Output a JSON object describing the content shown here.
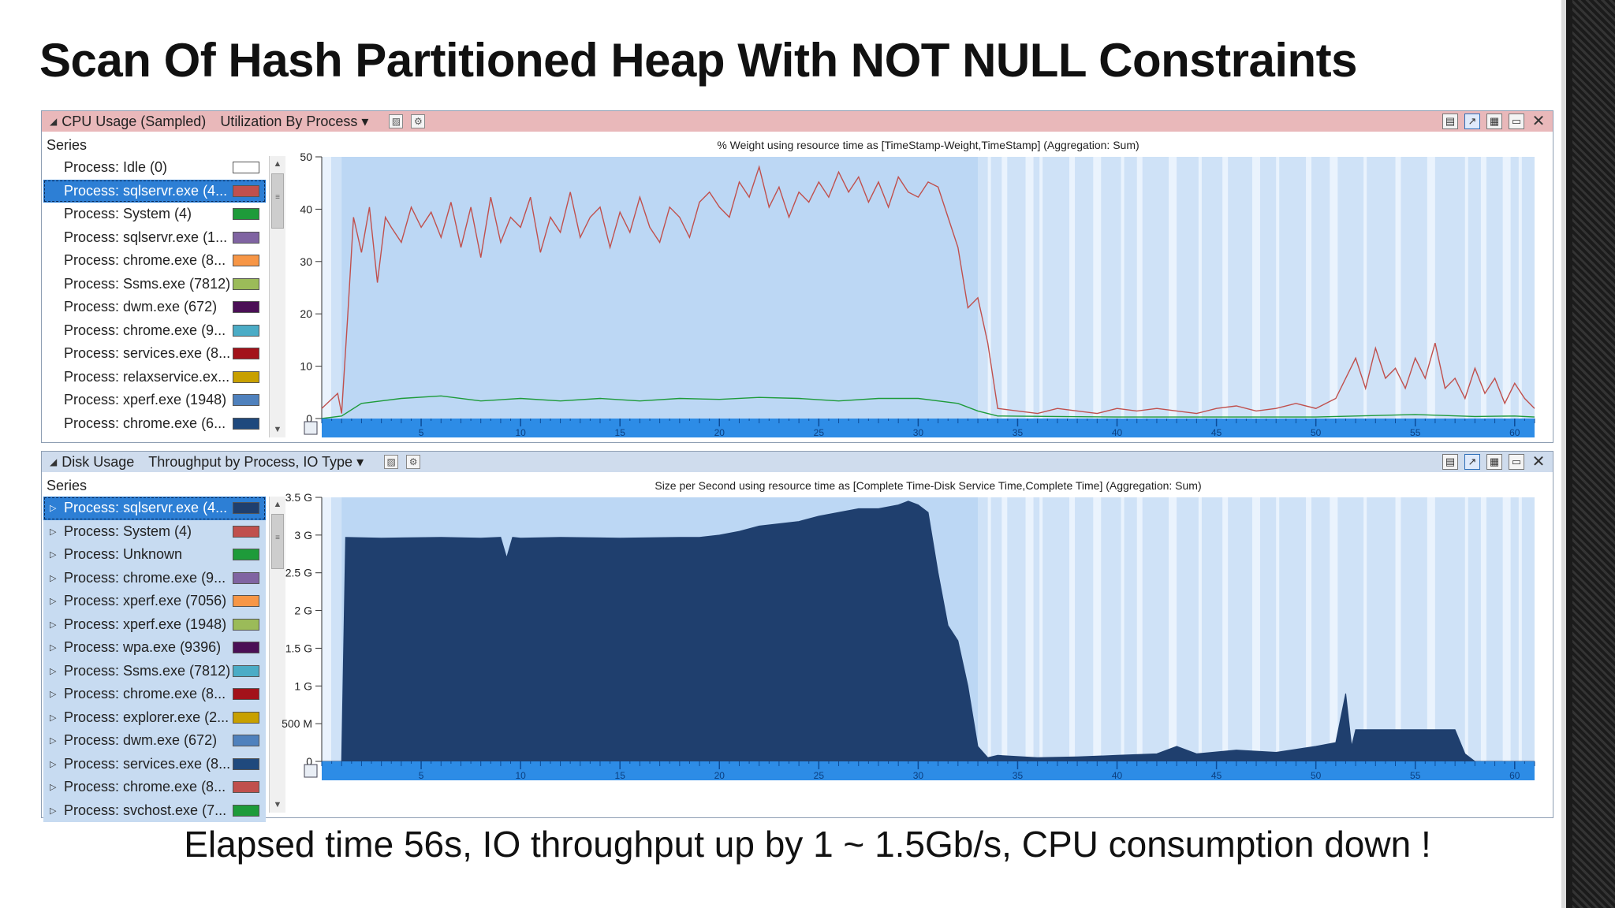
{
  "slide": {
    "title": "Scan Of Hash Partitioned Heap With NOT NULL Constraints",
    "caption": "Elapsed time 56s, IO throughput up by 1 ~ 1.5Gb/s, CPU  consumption down !"
  },
  "colors": {
    "cpu_header": "#e9b8ba",
    "disk_header": "#cfdced",
    "plot_bg": "#cfe2f7",
    "active_band": "#bcd7f4",
    "timeline": "#2d8ce6",
    "selection": "#2d7fd5"
  },
  "cpu_panel": {
    "title": "CPU Usage (Sampled)",
    "view": "Utilization By Process",
    "series_header": "Series",
    "series": [
      {
        "label": "Process: Idle (0)",
        "color": "#ffffff"
      },
      {
        "label": "Process: sqlservr.exe (4...",
        "color": "#c0504d",
        "selected": true
      },
      {
        "label": "Process: System (4)",
        "color": "#1e9b3a"
      },
      {
        "label": "Process: sqlservr.exe (1...",
        "color": "#8064a2"
      },
      {
        "label": "Process: chrome.exe (8...",
        "color": "#f79646"
      },
      {
        "label": "Process: Ssms.exe (7812)",
        "color": "#9bbb59"
      },
      {
        "label": "Process: dwm.exe (672)",
        "color": "#4b0f56"
      },
      {
        "label": "Process: chrome.exe (9...",
        "color": "#4bacc6"
      },
      {
        "label": "Process: services.exe (8...",
        "color": "#a3121a"
      },
      {
        "label": "Process: relaxservice.ex...",
        "color": "#c8a000"
      },
      {
        "label": "Process: xperf.exe (1948)",
        "color": "#4f81bd"
      },
      {
        "label": "Process: chrome.exe (6...",
        "color": "#1f497d"
      }
    ]
  },
  "disk_panel": {
    "title": "Disk Usage",
    "view": "Throughput by Process, IO Type",
    "series_header": "Series",
    "series": [
      {
        "label": "Process: sqlservr.exe (4...",
        "color": "#1f3f6e",
        "selected": true
      },
      {
        "label": "Process: System (4)",
        "color": "#c0504d"
      },
      {
        "label": "Process: Unknown",
        "color": "#1e9b3a"
      },
      {
        "label": "Process: chrome.exe (9...",
        "color": "#8064a2"
      },
      {
        "label": "Process: xperf.exe (7056)",
        "color": "#f79646"
      },
      {
        "label": "Process: xperf.exe (1948)",
        "color": "#9bbb59"
      },
      {
        "label": "Process: wpa.exe (9396)",
        "color": "#4b0f56"
      },
      {
        "label": "Process: Ssms.exe (7812)",
        "color": "#4bacc6"
      },
      {
        "label": "Process: chrome.exe (8...",
        "color": "#a3121a"
      },
      {
        "label": "Process: explorer.exe (2...",
        "color": "#c8a000"
      },
      {
        "label": "Process: dwm.exe (672)",
        "color": "#4f81bd"
      },
      {
        "label": "Process: services.exe (8...",
        "color": "#1f497d"
      },
      {
        "label": "Process: chrome.exe (8...",
        "color": "#c0504d"
      },
      {
        "label": "Process: svchost.exe (7...",
        "color": "#1e9b3a"
      }
    ]
  },
  "chart_data": [
    {
      "type": "line",
      "title": "% Weight using resource time as [TimeStamp-Weight,TimeStamp] (Aggregation: Sum)",
      "yticks": [
        "50",
        "40",
        "30",
        "20",
        "10",
        "0"
      ],
      "ylim": [
        0,
        52
      ],
      "xticks": [
        "5",
        "10",
        "15",
        "20",
        "25",
        "30",
        "35",
        "40",
        "45",
        "50",
        "55",
        "60"
      ],
      "xlim": [
        0,
        61
      ],
      "series": [
        {
          "name": "Process: sqlservr.exe (4...",
          "color": "#c0504d",
          "x": [
            0,
            0.8,
            1.0,
            1.3,
            1.6,
            2,
            2.4,
            2.8,
            3.2,
            3.5,
            4,
            4.5,
            5,
            5.5,
            6,
            6.5,
            7,
            7.5,
            8,
            8.5,
            9,
            9.5,
            10,
            10.5,
            11,
            11.5,
            12,
            12.5,
            13,
            13.5,
            14,
            14.5,
            15,
            15.5,
            16,
            16.5,
            17,
            17.5,
            18,
            18.5,
            19,
            19.5,
            20,
            20.5,
            21,
            21.5,
            22,
            22.5,
            23,
            23.5,
            24,
            24.5,
            25,
            25.5,
            26,
            26.5,
            27,
            27.5,
            28,
            28.5,
            29,
            29.5,
            30,
            30.5,
            31,
            31.5,
            32,
            32.5,
            33,
            33.5,
            34,
            35,
            36,
            37,
            38,
            39,
            40,
            41,
            42,
            43,
            44,
            45,
            46,
            47,
            48,
            49,
            50,
            51,
            52,
            52.5,
            53,
            53.5,
            54,
            54.5,
            55,
            55.5,
            56,
            56.5,
            57,
            57.5,
            58,
            58.5,
            59,
            59.5,
            60,
            60.5,
            61
          ],
          "y": [
            2,
            5,
            1,
            20,
            40,
            33,
            42,
            27,
            40,
            38,
            35,
            42,
            38,
            41,
            36,
            43,
            34,
            42,
            32,
            44,
            35,
            40,
            38,
            44,
            33,
            40,
            37,
            45,
            36,
            40,
            42,
            34,
            41,
            37,
            44,
            38,
            35,
            42,
            40,
            36,
            43,
            45,
            42,
            40,
            47,
            44,
            50,
            42,
            46,
            40,
            45,
            43,
            47,
            44,
            49,
            45,
            48,
            43,
            47,
            42,
            48,
            45,
            44,
            47,
            46,
            40,
            34,
            22,
            24,
            15,
            2,
            1.5,
            1,
            2,
            1.5,
            1,
            2,
            1.5,
            2,
            1.5,
            1,
            2,
            2.5,
            1.5,
            2,
            3,
            2,
            4,
            12,
            6,
            14,
            8,
            10,
            6,
            12,
            8,
            15,
            6,
            8,
            4,
            10,
            5,
            8,
            3,
            7,
            4,
            2
          ]
        },
        {
          "name": "Process: System (4)",
          "color": "#1e9b3a",
          "x": [
            0,
            1,
            2,
            4,
            6,
            8,
            10,
            12,
            14,
            16,
            18,
            20,
            22,
            24,
            26,
            28,
            30,
            32,
            33,
            34,
            40,
            50,
            52,
            55,
            58,
            60,
            61
          ],
          "y": [
            0,
            0.5,
            3,
            4,
            4.5,
            3.5,
            4,
            3.5,
            4,
            3.5,
            4,
            3.8,
            4.2,
            4,
            3.5,
            4,
            4,
            3,
            1.5,
            0.5,
            0.3,
            0.3,
            0.5,
            0.8,
            0.4,
            0.5,
            0.3
          ]
        }
      ]
    },
    {
      "type": "area",
      "title": "Size per Second using resource time as [Complete Time-Disk Service Time,Complete Time] (Aggregation: Sum)",
      "yticks": [
        "3.5 G",
        "3 G",
        "2.5 G",
        "2 G",
        "1.5 G",
        "1 G",
        "500 M",
        "0"
      ],
      "ylim": [
        0,
        3.5
      ],
      "yunit": "G",
      "xticks": [
        "5",
        "10",
        "15",
        "20",
        "25",
        "30",
        "35",
        "40",
        "45",
        "50",
        "55",
        "60"
      ],
      "xlim": [
        0,
        61
      ],
      "series": [
        {
          "name": "Process: sqlservr.exe (4...",
          "color": "#1f3f6e",
          "x": [
            0,
            1,
            1.2,
            3,
            6,
            8,
            9,
            9.3,
            9.6,
            10,
            12,
            15,
            18,
            19,
            20,
            21,
            22,
            23,
            24,
            25,
            26,
            27,
            28,
            29,
            29.5,
            30,
            30.5,
            31,
            31.5,
            32,
            32.5,
            33,
            33.5,
            34,
            36,
            38,
            40,
            42,
            43,
            44,
            46,
            48,
            50,
            51,
            51.5,
            51.8,
            52,
            53,
            55,
            57,
            57.5,
            58,
            61
          ],
          "y": [
            0,
            0,
            2.97,
            2.96,
            2.97,
            2.96,
            2.97,
            2.7,
            2.97,
            2.96,
            2.97,
            2.96,
            2.97,
            2.97,
            3.0,
            3.05,
            3.12,
            3.15,
            3.18,
            3.25,
            3.3,
            3.35,
            3.35,
            3.4,
            3.45,
            3.4,
            3.3,
            2.5,
            1.8,
            1.6,
            1.0,
            0.2,
            0.05,
            0.08,
            0.05,
            0.06,
            0.08,
            0.1,
            0.2,
            0.1,
            0.15,
            0.12,
            0.2,
            0.25,
            0.9,
            0.2,
            0.42,
            0.42,
            0.42,
            0.42,
            0.1,
            0,
            0
          ]
        }
      ]
    }
  ]
}
